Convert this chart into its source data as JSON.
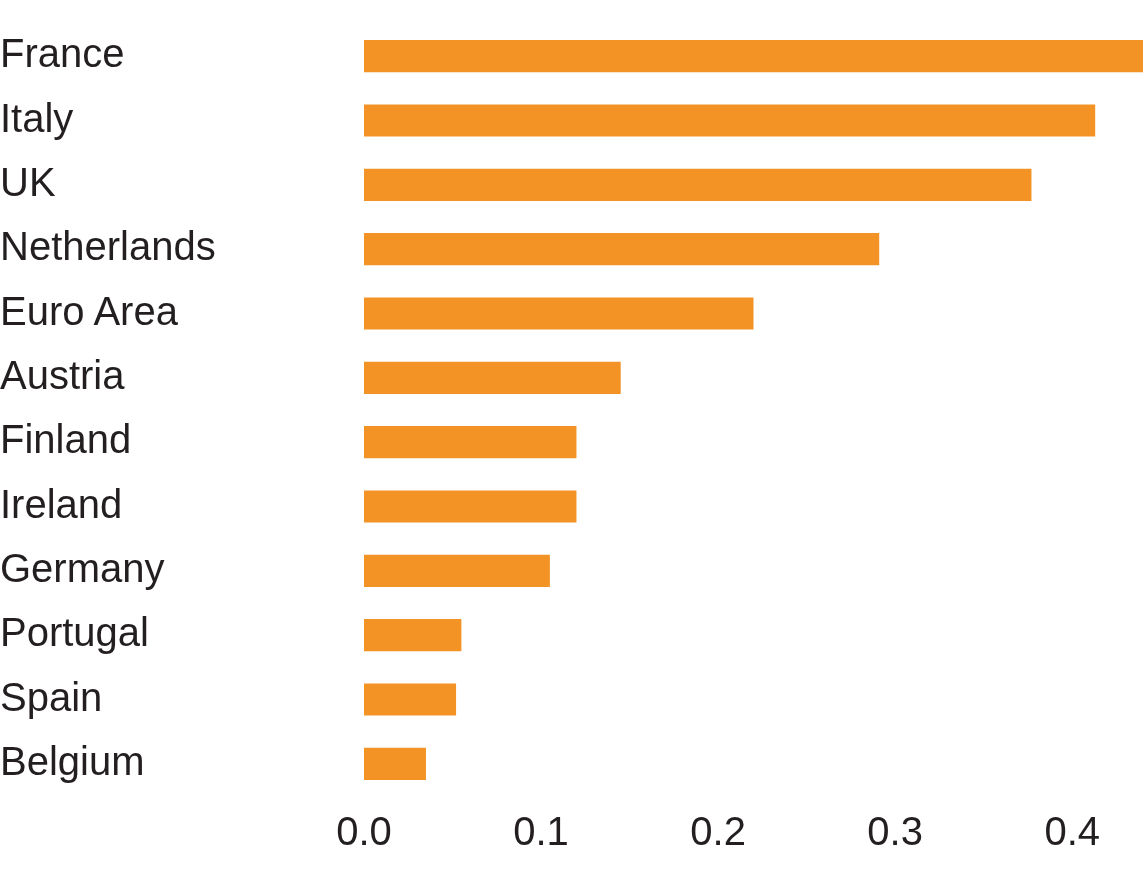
{
  "chart_data": {
    "type": "bar",
    "orientation": "horizontal",
    "categories": [
      "France",
      "Italy",
      "UK",
      "Netherlands",
      "Euro Area",
      "Austria",
      "Finland",
      "Ireland",
      "Germany",
      "Portugal",
      "Spain",
      "Belgium"
    ],
    "values": [
      0.44,
      0.413,
      0.377,
      0.291,
      0.22,
      0.145,
      0.12,
      0.12,
      0.105,
      0.055,
      0.052,
      0.035
    ],
    "color": "#f39325",
    "xlim": [
      0,
      0.44
    ],
    "xticks": [
      {
        "value": 0,
        "label": "0.0"
      },
      {
        "value": 0.1,
        "label": "0.1"
      },
      {
        "value": 0.2,
        "label": "0.2"
      },
      {
        "value": 0.3,
        "label": "0.3"
      },
      {
        "value": 0.4,
        "label": "0.4"
      }
    ],
    "grid": false,
    "legend": false
  }
}
